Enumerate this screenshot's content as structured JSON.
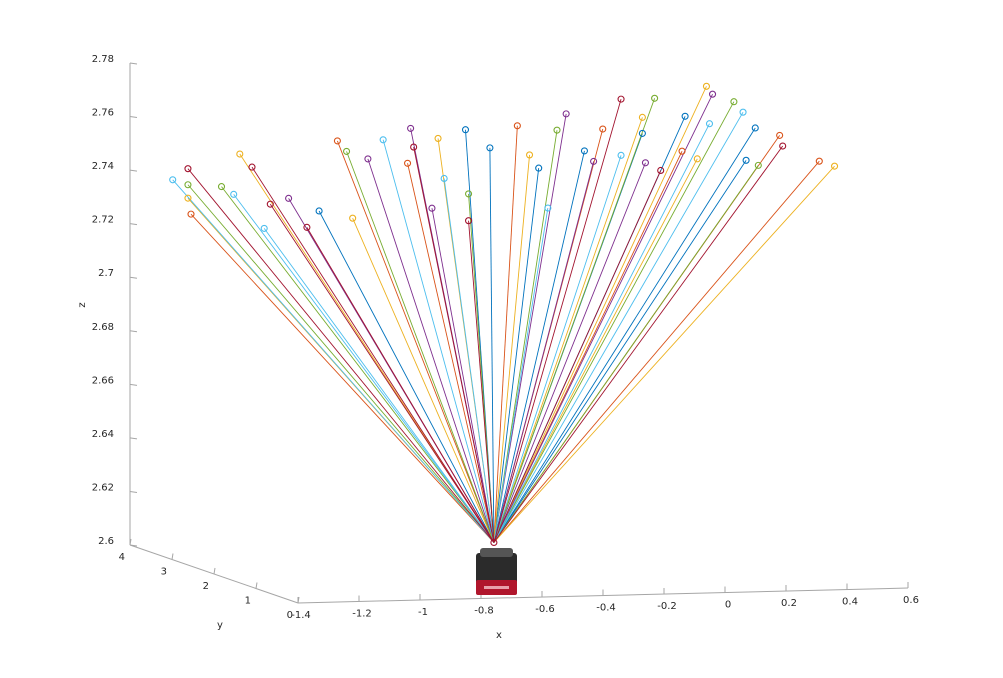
{
  "chart_data": {
    "type": "ray3d",
    "xlabel": "x",
    "ylabel": "y",
    "zlabel": "z",
    "xlim": [
      -1.4,
      0.6
    ],
    "ylim": [
      0,
      4
    ],
    "zlim": [
      2.6,
      2.78
    ],
    "xticks": [
      -1.4,
      -1.2,
      -1,
      -0.8,
      -0.6,
      -0.4,
      -0.2,
      0,
      0.2,
      0.4,
      0.6
    ],
    "yticks": [
      0,
      1,
      2,
      3,
      4
    ],
    "zticks": [
      2.6,
      2.62,
      2.64,
      2.66,
      2.68,
      2.7,
      2.72,
      2.74,
      2.76,
      2.78
    ],
    "origin": {
      "x": -0.62,
      "y": 1,
      "z": 2.615,
      "color": "#A2142F"
    },
    "series": [
      {
        "color": "#0072BD",
        "x": [
          -0.3,
          -0.22,
          -0.06,
          0.09,
          0.28,
          0.42,
          0.62,
          -0.78,
          0.65
        ],
        "y": [
          4,
          4,
          4,
          4,
          4,
          4,
          4,
          4,
          4
        ],
        "z": [
          2.752,
          2.745,
          2.737,
          2.743,
          2.749,
          2.755,
          2.738,
          2.723,
          2.75
        ]
      },
      {
        "color": "#D95319",
        "x": [
          -1.2,
          -0.72,
          -0.49,
          -0.13,
          0.15,
          0.41,
          0.73,
          0.86
        ],
        "y": [
          4,
          4,
          4,
          4,
          4,
          4,
          4,
          4
        ],
        "z": [
          2.723,
          2.749,
          2.74,
          2.753,
          2.751,
          2.742,
          2.747,
          2.737
        ]
      },
      {
        "color": "#EDB120",
        "x": [
          -1.04,
          -1.21,
          -0.67,
          -0.39,
          -0.09,
          0.28,
          0.49,
          0.91,
          0.46
        ],
        "y": [
          4,
          4,
          4,
          4,
          4,
          4,
          4,
          4,
          4
        ],
        "z": [
          2.745,
          2.729,
          2.72,
          2.749,
          2.742,
          2.755,
          2.766,
          2.735,
          2.739
        ]
      },
      {
        "color": "#7E2F8E",
        "x": [
          -0.62,
          -0.48,
          -0.41,
          0.03,
          0.12,
          0.29,
          0.51,
          -0.88
        ],
        "y": [
          4,
          4,
          4,
          4,
          4,
          4,
          4,
          4
        ],
        "z": [
          2.742,
          2.753,
          2.723,
          2.757,
          2.739,
          2.738,
          2.763,
          2.728
        ]
      },
      {
        "color": "#77AC30",
        "x": [
          -1.21,
          -1.1,
          -0.69,
          -0.29,
          0.0,
          0.32,
          0.58,
          0.66
        ],
        "y": [
          4,
          4,
          4,
          4,
          4,
          4,
          4,
          4
        ],
        "z": [
          2.734,
          2.733,
          2.745,
          2.728,
          2.751,
          2.762,
          2.76,
          2.736
        ]
      },
      {
        "color": "#4DBEEE",
        "x": [
          -1.26,
          -1.06,
          -0.96,
          -0.57,
          -0.37,
          -0.03,
          0.21,
          0.61,
          0.5
        ],
        "y": [
          4,
          4,
          4,
          4,
          4,
          4,
          4,
          4,
          4
        ],
        "z": [
          2.736,
          2.73,
          2.717,
          2.749,
          2.734,
          2.722,
          2.741,
          2.756,
          2.752
        ]
      },
      {
        "color": "#A2142F",
        "x": [
          -1.21,
          -1.0,
          -0.94,
          -0.82,
          -0.47,
          -0.29,
          0.21,
          0.34,
          0.74
        ],
        "y": [
          4,
          4,
          4,
          4,
          4,
          4,
          4,
          4,
          4
        ],
        "z": [
          2.74,
          2.74,
          2.726,
          2.717,
          2.746,
          2.718,
          2.762,
          2.735,
          2.743
        ]
      }
    ]
  }
}
